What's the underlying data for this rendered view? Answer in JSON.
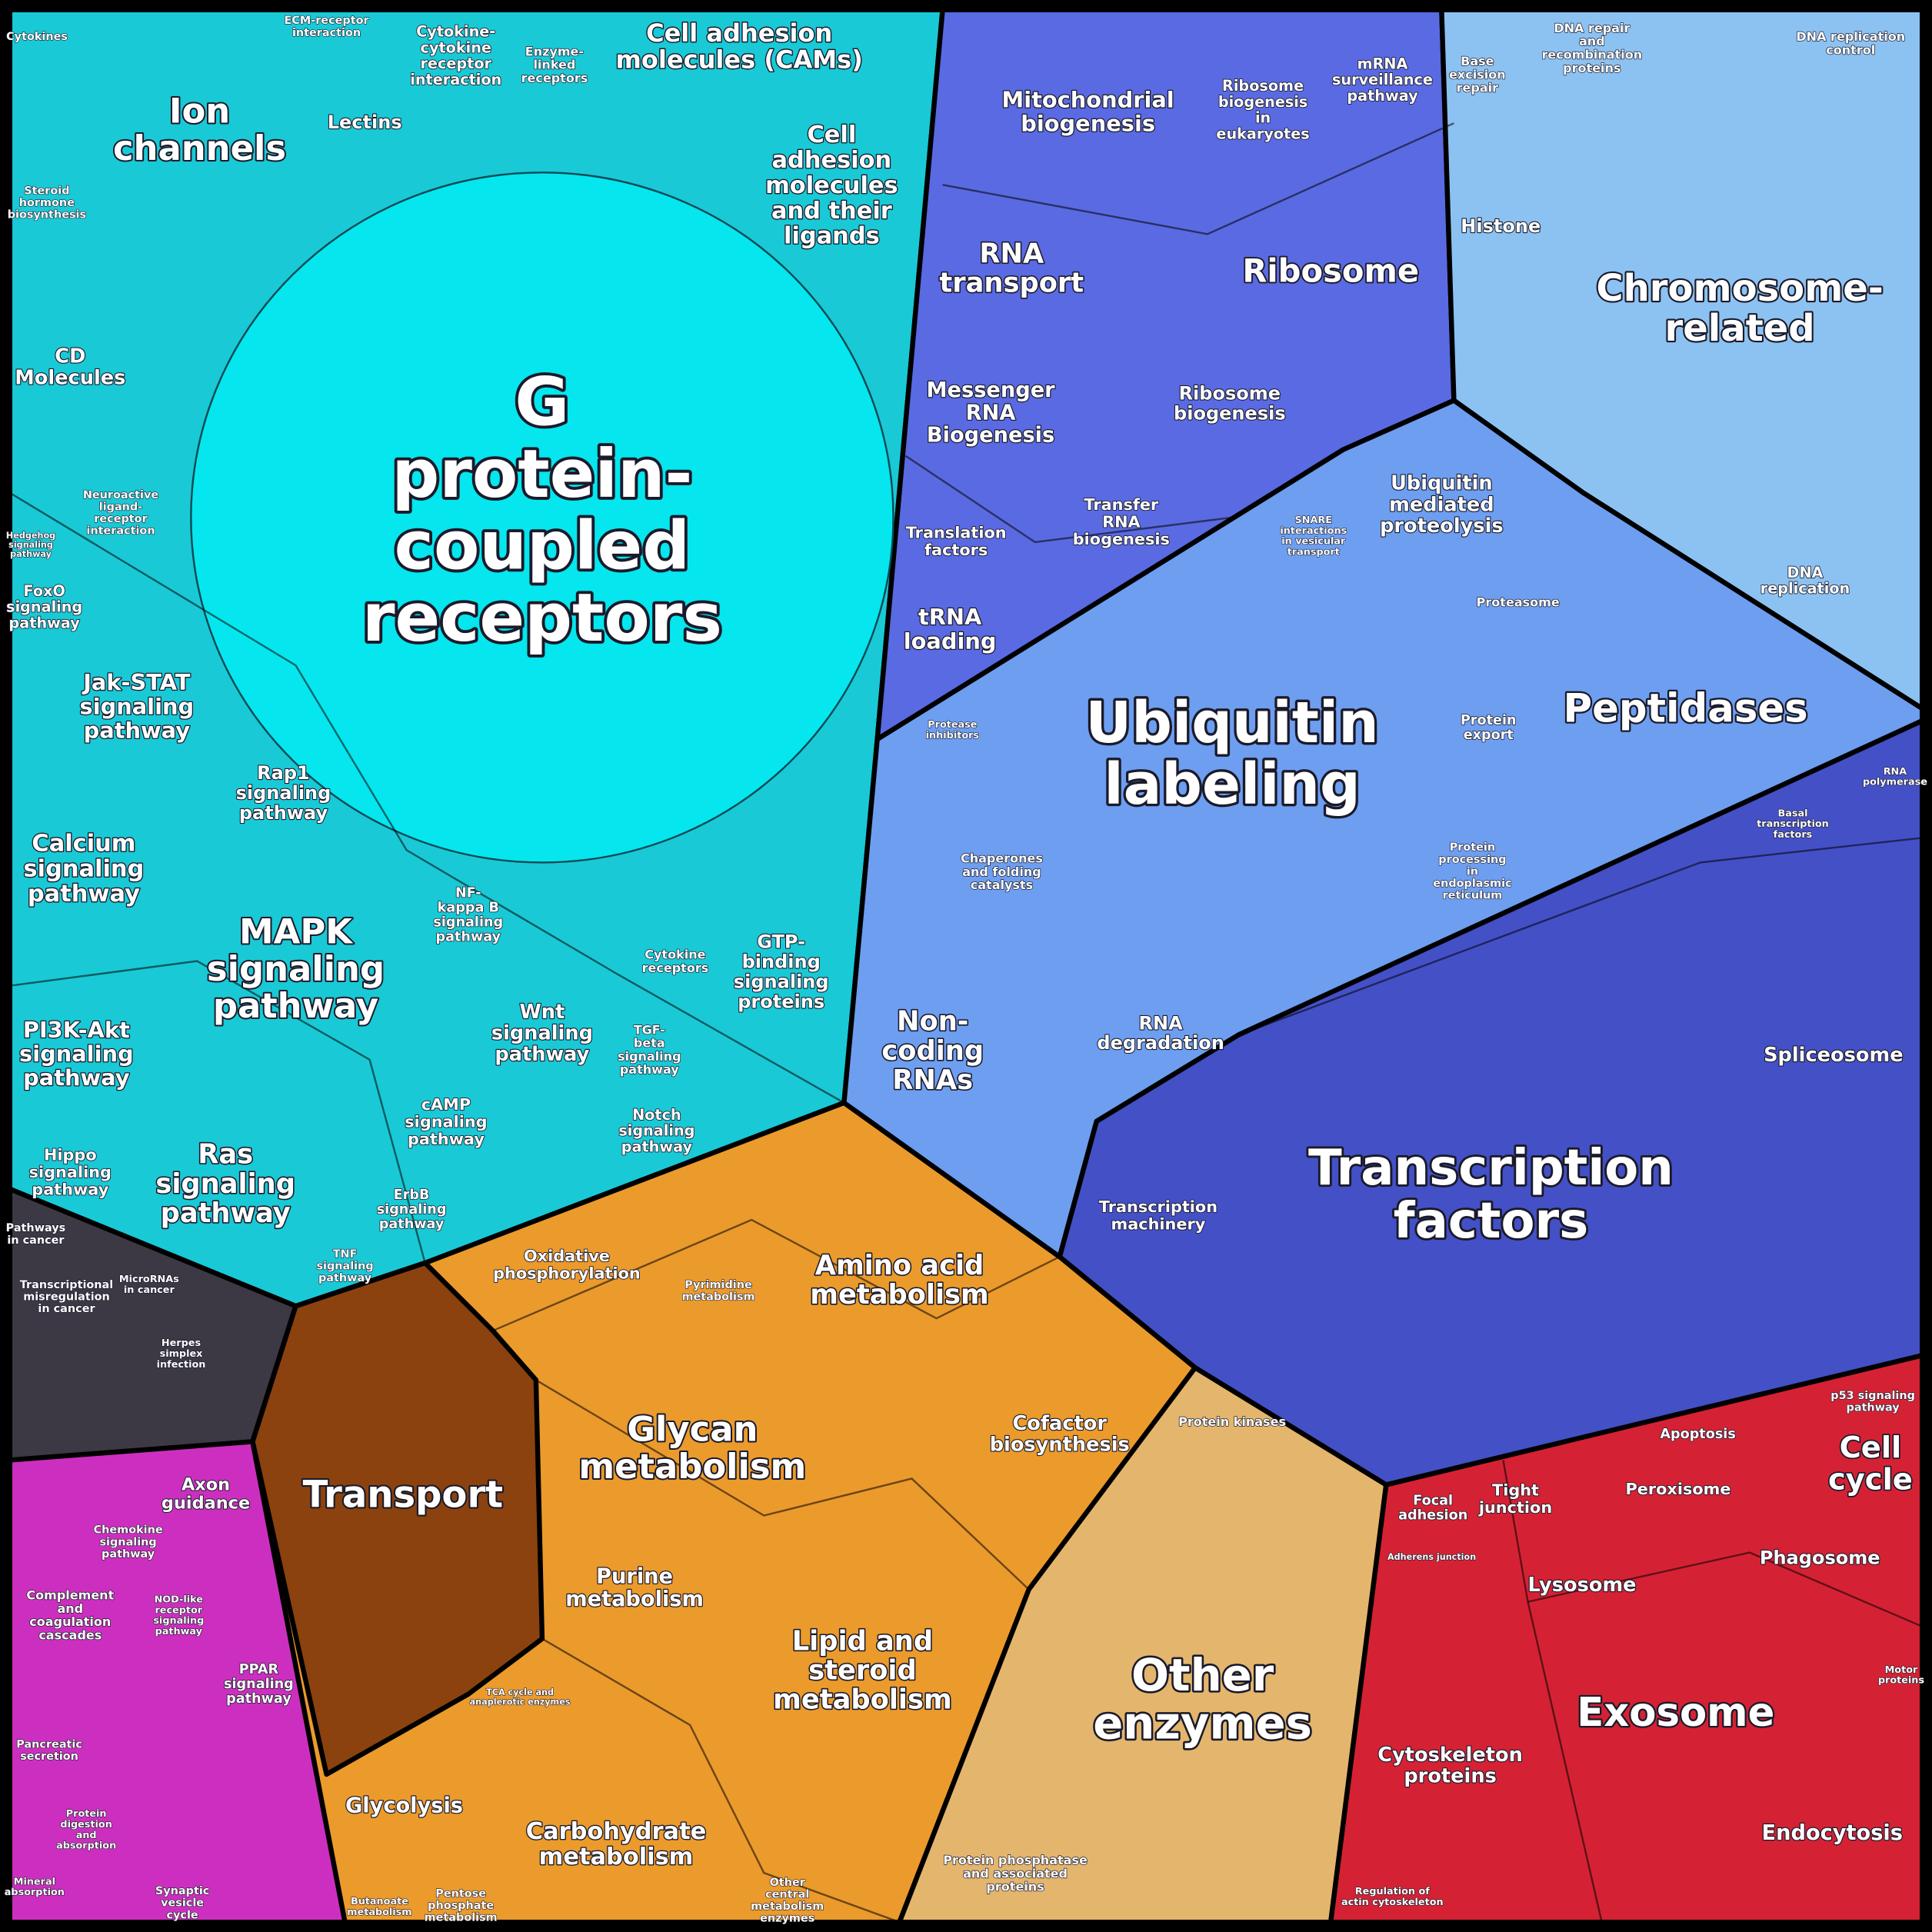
{
  "labels": [
    [
      "G",
      "protein-",
      "coupled",
      "receptors"
    ],
    [
      "Ion",
      "channels"
    ],
    [
      "Cell adhesion",
      "molecules (CAMs)"
    ],
    [
      "Cell",
      "adhesion",
      "molecules",
      "and their",
      "ligands"
    ],
    [
      "Cytokine-",
      "cytokine",
      "receptor",
      "interaction"
    ],
    [
      "Enzyme-",
      "linked",
      "receptors"
    ],
    [
      "Lectins"
    ],
    [
      "ECM-receptor",
      "interaction"
    ],
    [
      "Cytokines"
    ],
    [
      "Steroid",
      "hormone",
      "biosynthesis"
    ],
    [
      "CD",
      "Molecules"
    ],
    [
      "Neuroactive",
      "ligand-",
      "receptor",
      "interaction"
    ],
    [
      "FoxO",
      "signaling",
      "pathway"
    ],
    [
      "Jak-STAT",
      "signaling",
      "pathway"
    ],
    [
      "Rap1",
      "signaling",
      "pathway"
    ],
    [
      "Calcium",
      "signaling",
      "pathway"
    ],
    [
      "MAPK",
      "signaling",
      "pathway"
    ],
    [
      "NF-",
      "kappa B",
      "signaling",
      "pathway"
    ],
    [
      "PI3K-Akt",
      "signaling",
      "pathway"
    ],
    [
      "Wnt",
      "signaling",
      "pathway"
    ],
    [
      "TGF-",
      "beta",
      "signaling",
      "pathway"
    ],
    [
      "Cytokine",
      "receptors"
    ],
    [
      "GTP-",
      "binding",
      "signaling",
      "proteins"
    ],
    [
      "Hippo",
      "signaling",
      "pathway"
    ],
    [
      "Ras",
      "signaling",
      "pathway"
    ],
    [
      "cAMP",
      "signaling",
      "pathway"
    ],
    [
      "Notch",
      "signaling",
      "pathway"
    ],
    [
      "ErbB",
      "signaling",
      "pathway"
    ],
    [
      "TNF",
      "signaling",
      "pathway"
    ],
    [
      "Pathways",
      "in cancer"
    ],
    [
      "Transcriptional",
      "misregulation",
      "in cancer"
    ],
    [
      "MicroRNAs",
      "in cancer"
    ],
    [
      "Herpes",
      "simplex",
      "infection"
    ],
    [
      "Axon",
      "guidance"
    ],
    [
      "Chemokine",
      "signaling",
      "pathway"
    ],
    [
      "Complement",
      "and",
      "coagulation",
      "cascades"
    ],
    [
      "NOD-like",
      "receptor",
      "signaling",
      "pathway"
    ],
    [
      "PPAR",
      "signaling",
      "pathway"
    ],
    [
      "Pancreatic",
      "secretion"
    ],
    [
      "Protein",
      "digestion",
      "and",
      "absorption"
    ],
    [
      "Synaptic",
      "vesicle",
      "cycle"
    ],
    [
      "Mineral",
      "absorption"
    ],
    [
      "Oxidative",
      "phosphorylation"
    ],
    [
      "Pyrimidine",
      "metabolism"
    ],
    [
      "Amino acid",
      "metabolism"
    ],
    [
      "Glycan",
      "metabolism"
    ],
    [
      "Transport"
    ],
    [
      "Cofactor",
      "biosynthesis"
    ],
    [
      "Purine",
      "metabolism"
    ],
    [
      "Lipid and",
      "steroid",
      "metabolism"
    ],
    [
      "TCA cycle and",
      "anaplerotic enzymes"
    ],
    [
      "Glycolysis"
    ],
    [
      "Carbohydrate",
      "metabolism"
    ],
    [
      "Butanoate",
      "metabolism"
    ],
    [
      "Pentose",
      "phosphate",
      "metabolism"
    ],
    [
      "Other",
      "central",
      "metabolism",
      "enzymes"
    ],
    [
      "Protein kinases"
    ],
    [
      "Other",
      "enzymes"
    ],
    [
      "Protein phosphatase",
      "and associated",
      "proteins"
    ],
    [
      "Mitochondrial",
      "biogenesis"
    ],
    [
      "Ribosome",
      "biogenesis",
      "in",
      "eukaryotes"
    ],
    [
      "mRNA",
      "surveillance",
      "pathway"
    ],
    [
      "RNA",
      "transport"
    ],
    [
      "Ribosome"
    ],
    [
      "Messenger",
      "RNA",
      "Biogenesis"
    ],
    [
      "Ribosome",
      "biogenesis"
    ],
    [
      "Transfer",
      "RNA",
      "biogenesis"
    ],
    [
      "Translation",
      "factors"
    ],
    [
      "tRNA",
      "loading"
    ],
    [
      "Base",
      "excision",
      "repair"
    ],
    [
      "DNA repair",
      "and",
      "recombination",
      "proteins"
    ],
    [
      "DNA replication",
      "control"
    ],
    [
      "Histone"
    ],
    [
      "Chromosome-",
      "related"
    ],
    [
      "Ubiquitin",
      "mediated",
      "proteolysis"
    ],
    [
      "SNARE",
      "interactions",
      "in vesicular",
      "transport"
    ],
    [
      "Proteasome"
    ],
    [
      "DNA",
      "replication"
    ],
    [
      "Peptidases"
    ],
    [
      "Ubiquitin",
      "labeling"
    ],
    [
      "Protein",
      "export"
    ],
    [
      "Protease",
      "inhibitors"
    ],
    [
      "Basal",
      "transcription",
      "factors"
    ],
    [
      "RNA",
      "polymerase"
    ],
    [
      "Chaperones",
      "and folding",
      "catalysts"
    ],
    [
      "Protein",
      "processing",
      "in",
      "endoplasmic",
      "reticulum"
    ],
    [
      "Non-",
      "coding",
      "RNAs"
    ],
    [
      "RNA",
      "degradation"
    ],
    [
      "Spliceosome"
    ],
    [
      "Transcription",
      "factors"
    ],
    [
      "Transcription",
      "machinery"
    ],
    [
      "p53 signaling",
      "pathway"
    ],
    [
      "Apoptosis"
    ],
    [
      "Cell",
      "cycle"
    ],
    [
      "Peroxisome"
    ],
    [
      "Focal",
      "adhesion"
    ],
    [
      "Tight",
      "junction"
    ],
    [
      "Adherens junction"
    ],
    [
      "Phagosome"
    ],
    [
      "Lysosome"
    ],
    [
      "Motor",
      "proteins"
    ],
    [
      "Exosome"
    ],
    [
      "Cytoskeleton",
      "proteins"
    ],
    [
      "Endocytosis"
    ],
    [
      "Regulation of",
      "actin cytoskeleton"
    ],
    [
      "Hedgehog",
      "signaling",
      "pathway"
    ]
  ]
}
